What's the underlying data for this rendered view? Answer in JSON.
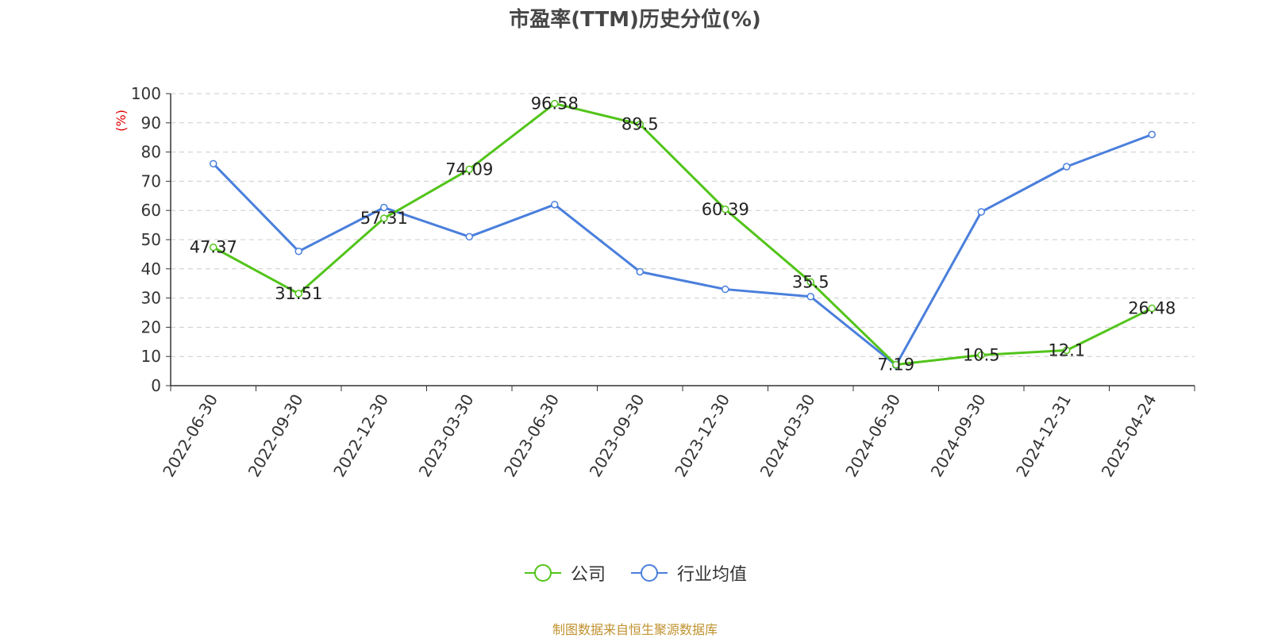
{
  "title": "市盈率(TTM)历史分位(%)",
  "source": "制图数据来自恒生聚源数据库",
  "colors": {
    "company": "#52c41a",
    "industry": "#4a7fdc",
    "yunit": "#e00000"
  },
  "chart_data": {
    "type": "line",
    "title": "市盈率(TTM)历史分位(%)",
    "ylabel": "(%)",
    "ylim": [
      0,
      100
    ],
    "yticks": [
      0,
      10,
      20,
      30,
      40,
      50,
      60,
      70,
      80,
      90,
      100
    ],
    "grid": true,
    "legend_position": "bottom",
    "categories": [
      "2022-06-30",
      "2022-09-30",
      "2022-12-30",
      "2023-03-30",
      "2023-06-30",
      "2023-09-30",
      "2023-12-30",
      "2024-03-30",
      "2024-06-30",
      "2024-09-30",
      "2024-12-31",
      "2025-04-24"
    ],
    "series": [
      {
        "name": "公司",
        "values": [
          47.37,
          31.51,
          57.31,
          74.09,
          96.58,
          89.5,
          60.39,
          35.5,
          7.19,
          10.5,
          12.1,
          26.48
        ],
        "labeled": true
      },
      {
        "name": "行业均值",
        "values": [
          76,
          46,
          61,
          51,
          62,
          39,
          33,
          30.5,
          7,
          59.5,
          75,
          86
        ],
        "labeled": false
      }
    ]
  }
}
